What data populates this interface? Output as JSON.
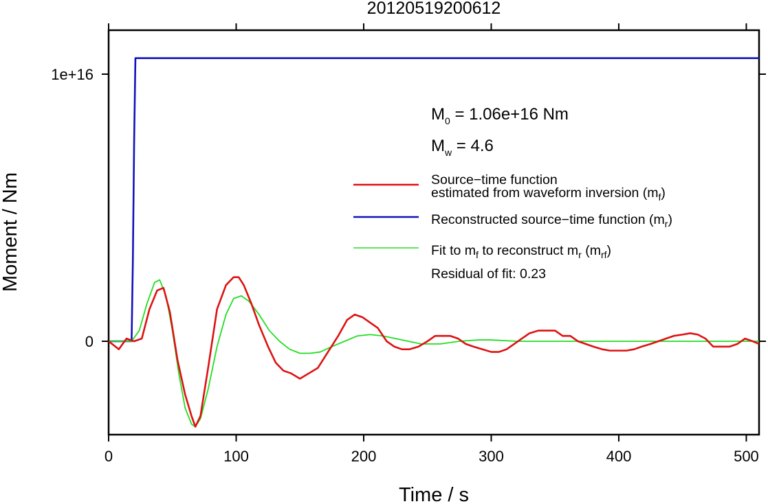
{
  "chart_data": {
    "type": "line",
    "title": "20120519200612",
    "xlabel": "Time / s",
    "ylabel": "Moment / Nm",
    "xlim": [
      0,
      510
    ],
    "ylim": [
      -3500000000000000.0,
      1.3e+16
    ],
    "x_ticks": [
      0,
      100,
      200,
      300,
      400,
      500
    ],
    "x_tick_labels": [
      "0",
      "100",
      "200",
      "300",
      "400",
      "500"
    ],
    "y_ticks": [
      0,
      1e+16
    ],
    "y_tick_labels": [
      "0",
      "1e+16"
    ],
    "grid": false,
    "legend_position": "right",
    "annotations": {
      "m0": {
        "base": "M",
        "sub": "0",
        "text": " = 1.06e+16 Nm"
      },
      "mw": {
        "base": "M",
        "sub": "w",
        "text": " = 4.6"
      },
      "residual": "Residual of fit: 0.23"
    },
    "legend": [
      {
        "line1": "Source−time function",
        "line2": "estimated from waveform inversion (m",
        "sub": "f",
        "close": ")",
        "color": "#dd1111"
      },
      {
        "line1": "Reconstructed source−time function (m",
        "sub": "r",
        "close": ")",
        "color": "#1111bb"
      },
      {
        "line1": "Fit to m",
        "sub1": "f",
        "mid": " to reconstruct m",
        "sub2": "r",
        "mid2": " (m",
        "sub3": "rf",
        "close": ")",
        "color": "#22dd22"
      }
    ],
    "series": [
      {
        "name": "m_f",
        "color": "#dd1111",
        "x": [
          0,
          8,
          14,
          20,
          26,
          32,
          38,
          43,
          48,
          54,
          60,
          65,
          68,
          72,
          78,
          85,
          92,
          98,
          102,
          106,
          112,
          118,
          125,
          131,
          137,
          143,
          150,
          157,
          164,
          172,
          180,
          187,
          193,
          199,
          205,
          211,
          218,
          224,
          230,
          236,
          243,
          250,
          256,
          262,
          268,
          274,
          280,
          286,
          293,
          300,
          306,
          312,
          318,
          324,
          330,
          337,
          343,
          350,
          356,
          362,
          368,
          374,
          380,
          387,
          393,
          400,
          406,
          412,
          418,
          425,
          431,
          437,
          443,
          450,
          456,
          462,
          468,
          474,
          481,
          487,
          493,
          499,
          505,
          510
        ],
        "y": [
          0,
          -300000000000000.0,
          100000000000000.0,
          0.0,
          100000000000000.0,
          1200000000000000.0,
          1900000000000000.0,
          2000000000000000.0,
          1100000000000000.0,
          -700000000000000.0,
          -2000000000000000.0,
          -2800000000000000.0,
          -3200000000000000.0,
          -2800000000000000.0,
          -1000000000000000.0,
          1200000000000000.0,
          2100000000000000.0,
          2400000000000000.0,
          2400000000000000.0,
          2100000000000000.0,
          1400000000000000.0,
          600000000000000.0,
          -200000000000000.0,
          -800000000000000.0,
          -1100000000000000.0,
          -1200000000000000.0,
          -1400000000000000.0,
          -1200000000000000.0,
          -1000000000000000.0,
          -400000000000000.0,
          200000000000000.0,
          800000000000000.0,
          1000000000000000.0,
          900000000000000.0,
          700000000000000.0,
          500000000000000.0,
          0.0,
          -200000000000000.0,
          -300000000000000.0,
          -300000000000000.0,
          -200000000000000.0,
          0.0,
          200000000000000.0,
          200000000000000.0,
          200000000000000.0,
          100000000000000.0,
          -100000000000000.0,
          -200000000000000.0,
          -300000000000000.0,
          -400000000000000.0,
          -400000000000000.0,
          -300000000000000.0,
          -100000000000000.0,
          100000000000000.0,
          300000000000000.0,
          400000000000000.0,
          400000000000000.0,
          400000000000000.0,
          200000000000000.0,
          200000000000000.0,
          0.0,
          -100000000000000.0,
          -200000000000000.0,
          -300000000000000.0,
          -350000000000000.0,
          -350000000000000.0,
          -350000000000000.0,
          -300000000000000.0,
          -200000000000000.0,
          -100000000000000.0,
          0.0,
          100000000000000.0,
          200000000000000.0,
          250000000000000.0,
          300000000000000.0,
          250000000000000.0,
          100000000000000.0,
          -200000000000000.0,
          -200000000000000.0,
          -200000000000000.0,
          -100000000000000.0,
          100000000000000.0,
          0.0,
          -100000000000000.0
        ]
      },
      {
        "name": "m_r",
        "color": "#1111bb",
        "x": [
          0,
          18,
          19,
          20,
          21,
          510
        ],
        "y": [
          0,
          0,
          3000000000000000.0,
          7500000000000000.0,
          1.06e+16,
          1.06e+16
        ]
      },
      {
        "name": "m_rf",
        "color": "#22dd22",
        "x": [
          0,
          10,
          18,
          24,
          30,
          36,
          40,
          45,
          50,
          55,
          60,
          65,
          68,
          72,
          78,
          85,
          92,
          98,
          104,
          110,
          118,
          126,
          134,
          142,
          150,
          158,
          166,
          175,
          185,
          195,
          205,
          215,
          225,
          235,
          245,
          260,
          275,
          290,
          300,
          320,
          350,
          400,
          450,
          510
        ],
        "y": [
          0,
          0,
          0.0,
          400000000000000.0,
          1400000000000000.0,
          2200000000000000.0,
          2300000000000000.0,
          1700000000000000.0,
          400000000000000.0,
          -1200000000000000.0,
          -2500000000000000.0,
          -3100000000000000.0,
          -3200000000000000.0,
          -2900000000000000.0,
          -1800000000000000.0,
          -200000000000000.0,
          1000000000000000.0,
          1600000000000000.0,
          1700000000000000.0,
          1500000000000000.0,
          1000000000000000.0,
          400000000000000.0,
          0.0,
          -300000000000000.0,
          -450000000000000.0,
          -450000000000000.0,
          -400000000000000.0,
          -200000000000000.0,
          0.0,
          200000000000000.0,
          250000000000000.0,
          200000000000000.0,
          100000000000000.0,
          0.0,
          -100000000000000.0,
          -100000000000000.0,
          0.0,
          50000000000000.0,
          50000000000000.0,
          0.0,
          0.0,
          0.0,
          0.0,
          0.0
        ]
      }
    ]
  }
}
